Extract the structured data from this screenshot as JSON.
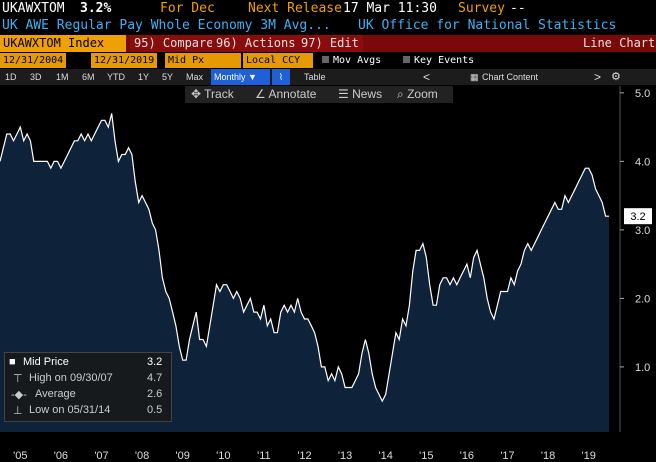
{
  "header": {
    "ticker": "UKAWXTOM",
    "last": "3.2%",
    "period": "For Dec",
    "next_release_label": "Next Release",
    "next_release": "17 Mar 11:30",
    "survey_label": "Survey",
    "survey": "--",
    "description": "UK AWE Regular Pay Whole Economy 3M Avg...",
    "source": "UK Office for National Statistics"
  },
  "toolbar": {
    "security": "UKAWXTOM Index",
    "compare": "95) Compare",
    "actions": "96) Actions",
    "edit": "97) Edit",
    "view": "Line Chart"
  },
  "controls": {
    "start": "12/31/2004",
    "end": "12/31/2019",
    "field": "Mid Px",
    "currency": "Local CCY",
    "mov_avgs": "Mov Avgs",
    "key_events": "Key Events"
  },
  "ranges": [
    "1D",
    "3D",
    "1M",
    "6M",
    "YTD",
    "1Y",
    "5Y",
    "Max"
  ],
  "frequency": "Monthly",
  "table": "Table",
  "chart_content": "Chart Content",
  "tools": [
    "Track",
    "Annotate",
    "News",
    "Zoom"
  ],
  "chart_data": {
    "type": "line",
    "categories": [
      null,
      null,
      null,
      null,
      null,
      null,
      "'05",
      null,
      null,
      null,
      null,
      null,
      null,
      null,
      null,
      null,
      null,
      null,
      "'06",
      null,
      null,
      null,
      null,
      null,
      null,
      null,
      null,
      null,
      null,
      null,
      "'07",
      null,
      null,
      null,
      null,
      null,
      null,
      null,
      null,
      null,
      null,
      null,
      "'08",
      null,
      null,
      null,
      null,
      null,
      null,
      null,
      null,
      null,
      null,
      null,
      "'09",
      null,
      null,
      null,
      null,
      null,
      null,
      null,
      null,
      null,
      null,
      null,
      "'10",
      null,
      null,
      null,
      null,
      null,
      null,
      null,
      null,
      null,
      null,
      null,
      "'11",
      null,
      null,
      null,
      null,
      null,
      null,
      null,
      null,
      null,
      null,
      null,
      "'12",
      null,
      null,
      null,
      null,
      null,
      null,
      null,
      null,
      null,
      null,
      null,
      "'13",
      null,
      null,
      null,
      null,
      null,
      null,
      null,
      null,
      null,
      null,
      null,
      "'14",
      null,
      null,
      null,
      null,
      null,
      null,
      null,
      null,
      null,
      null,
      null,
      "'15",
      null,
      null,
      null,
      null,
      null,
      null,
      null,
      null,
      null,
      null,
      null,
      "'16",
      null,
      null,
      null,
      null,
      null,
      null,
      null,
      null,
      null,
      null,
      null,
      "'17",
      null,
      null,
      null,
      null,
      null,
      null,
      null,
      null,
      null,
      null,
      null,
      "'18",
      null,
      null,
      null,
      null,
      null,
      null,
      null,
      null,
      null,
      null,
      null,
      "'19",
      null,
      null,
      null,
      null,
      null,
      null
    ],
    "series": [
      {
        "name": "Mid Price",
        "color": "#ffffff",
        "values": [
          4.0,
          4.2,
          4.4,
          4.4,
          4.3,
          4.4,
          4.5,
          4.3,
          4.4,
          4.3,
          4.0,
          4.0,
          4.0,
          4.0,
          4.0,
          3.9,
          4.0,
          4.0,
          3.9,
          4.0,
          4.1,
          4.2,
          4.3,
          4.3,
          4.4,
          4.3,
          4.4,
          4.3,
          4.4,
          4.5,
          4.6,
          4.6,
          4.5,
          4.7,
          4.3,
          4.0,
          4.1,
          4.1,
          4.2,
          4.1,
          3.7,
          3.4,
          3.5,
          3.4,
          3.3,
          3.1,
          3.0,
          2.7,
          2.3,
          2.1,
          2.0,
          1.8,
          1.6,
          1.3,
          1.1,
          1.1,
          1.4,
          1.6,
          1.8,
          1.4,
          1.4,
          1.3,
          1.6,
          1.9,
          2.2,
          2.1,
          2.2,
          2.2,
          2.1,
          2.0,
          2.1,
          2.0,
          1.8,
          1.9,
          2.0,
          1.8,
          1.8,
          1.7,
          1.9,
          1.6,
          1.7,
          1.5,
          1.5,
          1.8,
          1.9,
          1.8,
          1.9,
          1.8,
          2.0,
          1.8,
          1.7,
          1.7,
          1.6,
          1.5,
          1.3,
          1.0,
          1.0,
          0.8,
          0.9,
          0.8,
          1.0,
          0.9,
          0.7,
          0.7,
          0.7,
          0.8,
          0.9,
          1.2,
          1.4,
          1.2,
          0.9,
          0.7,
          0.6,
          0.5,
          0.6,
          0.9,
          1.2,
          1.5,
          1.4,
          1.7,
          1.6,
          1.9,
          2.4,
          2.7,
          2.7,
          2.8,
          2.6,
          2.2,
          1.9,
          1.9,
          2.2,
          2.3,
          2.3,
          2.2,
          2.3,
          2.2,
          2.3,
          2.4,
          2.5,
          2.3,
          2.6,
          2.7,
          2.5,
          2.3,
          2.0,
          1.8,
          1.7,
          1.9,
          2.1,
          2.1,
          2.1,
          2.3,
          2.2,
          2.4,
          2.5,
          2.7,
          2.8,
          2.7,
          2.8,
          2.9,
          3.0,
          3.1,
          3.2,
          3.3,
          3.4,
          3.3,
          3.3,
          3.5,
          3.4,
          3.5,
          3.6,
          3.7,
          3.8,
          3.9,
          3.9,
          3.8,
          3.6,
          3.5,
          3.4,
          3.2,
          3.2
        ]
      }
    ],
    "area_color": "#0e2339",
    "ylim": [
      0.05,
      5.1
    ],
    "yticks": [
      {
        "value": 1,
        "label": "1.0"
      },
      {
        "value": 2,
        "label": "2.0"
      },
      {
        "value": 3,
        "label": "3.0"
      },
      {
        "value": 4,
        "label": "4.0"
      },
      {
        "value": 5,
        "label": "5.0"
      }
    ],
    "stats": [
      {
        "label": "Mid Price",
        "value": 3.2
      },
      {
        "label": "High on 09/30/07",
        "value": 4.7
      },
      {
        "label": "Average",
        "value": 2.6
      },
      {
        "label": "Low on 05/31/14",
        "value": 0.5
      }
    ]
  }
}
